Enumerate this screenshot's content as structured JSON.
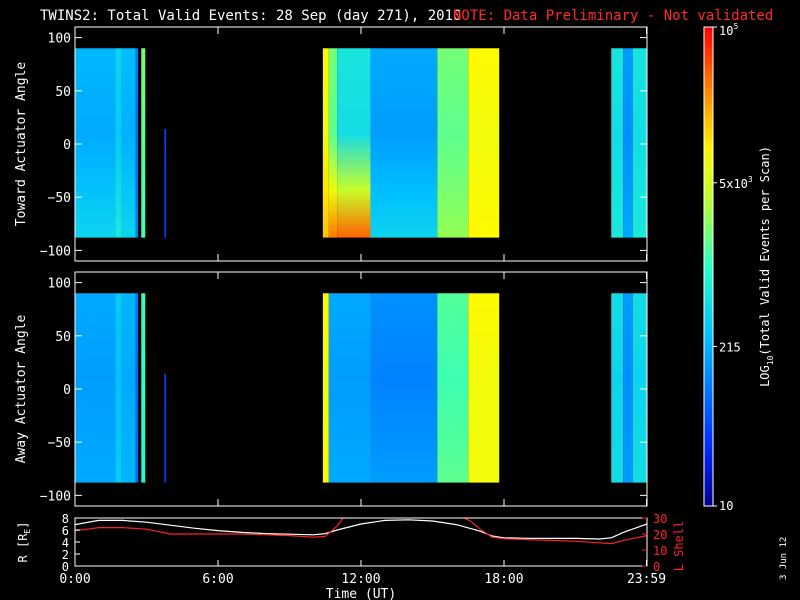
{
  "chart_data": [
    {
      "type": "heatmap",
      "title": "TWINS2: Total Valid Events: 28 Sep (day 271), 2010",
      "note": "NOTE: Data Preliminary - Not validated",
      "panels": [
        {
          "id": "toward",
          "ylabel": "Toward Actuator Angle",
          "ylim": [
            -110,
            110
          ],
          "yticks": [
            -100,
            -50,
            0,
            50,
            100
          ],
          "data_ylim": [
            -88,
            90
          ],
          "blocks": [
            {
              "t0": 0.0,
              "t1": 1.7,
              "c_mid": 0.32,
              "c_low": 0.4
            },
            {
              "t0": 1.7,
              "t1": 1.95,
              "c_mid": 0.38,
              "c_low": 0.45
            },
            {
              "t0": 1.95,
              "t1": 2.55,
              "c_mid": 0.33,
              "c_low": 0.4
            },
            {
              "t0": 2.55,
              "t1": 2.65,
              "c_mid": 0.22,
              "c_low": 0.25
            },
            {
              "t0": 2.78,
              "t1": 2.95,
              "c_mid": 0.55,
              "c_low": 0.52
            },
            {
              "t0": 3.75,
              "t1": 3.82,
              "c_mid": 0.15,
              "c_low": 0.15,
              "y0": -88,
              "y1": 14
            },
            {
              "t0": 10.4,
              "t1": 10.65,
              "c_mid": 0.72,
              "c_low": 0.8
            },
            {
              "t0": 10.65,
              "t1": 11.0,
              "c_mid": 0.55,
              "c_low": 0.88
            },
            {
              "t0": 11.0,
              "t1": 12.4,
              "c_mid": 0.42,
              "c_low": 0.9
            },
            {
              "t0": 12.4,
              "t1": 15.2,
              "c_mid": 0.3,
              "c_low": 0.4
            },
            {
              "t0": 15.2,
              "t1": 16.5,
              "c_mid": 0.55,
              "c_low": 0.6
            },
            {
              "t0": 16.5,
              "t1": 17.8,
              "c_mid": 0.72,
              "c_low": 0.74
            },
            {
              "t0": 22.5,
              "t1": 23.0,
              "c_mid": 0.42,
              "c_low": 0.45
            },
            {
              "t0": 23.0,
              "t1": 23.4,
              "c_mid": 0.28,
              "c_low": 0.32
            },
            {
              "t0": 23.4,
              "t1": 23.98,
              "c_mid": 0.42,
              "c_low": 0.45
            }
          ]
        },
        {
          "id": "away",
          "ylabel": "Away Actuator Angle",
          "ylim": [
            -110,
            110
          ],
          "yticks": [
            -100,
            -50,
            0,
            50,
            100
          ],
          "data_ylim": [
            -88,
            90
          ],
          "blocks": [
            {
              "t0": 0.0,
              "t1": 1.7,
              "c_mid": 0.3,
              "c_low": 0.32
            },
            {
              "t0": 1.7,
              "t1": 1.95,
              "c_mid": 0.36,
              "c_low": 0.38
            },
            {
              "t0": 1.95,
              "t1": 2.55,
              "c_mid": 0.32,
              "c_low": 0.34
            },
            {
              "t0": 2.55,
              "t1": 2.65,
              "c_mid": 0.22,
              "c_low": 0.22
            },
            {
              "t0": 2.78,
              "t1": 2.95,
              "c_mid": 0.5,
              "c_low": 0.48
            },
            {
              "t0": 3.75,
              "t1": 3.82,
              "c_mid": 0.15,
              "c_low": 0.15,
              "y0": -88,
              "y1": 14
            },
            {
              "t0": 10.4,
              "t1": 10.65,
              "c_mid": 0.72,
              "c_low": 0.74
            },
            {
              "t0": 10.65,
              "t1": 12.4,
              "c_mid": 0.3,
              "c_low": 0.32
            },
            {
              "t0": 12.4,
              "t1": 15.2,
              "c_mid": 0.26,
              "c_low": 0.3
            },
            {
              "t0": 15.2,
              "t1": 16.5,
              "c_mid": 0.52,
              "c_low": 0.55
            },
            {
              "t0": 16.5,
              "t1": 17.8,
              "c_mid": 0.72,
              "c_low": 0.72
            },
            {
              "t0": 22.5,
              "t1": 23.0,
              "c_mid": 0.4,
              "c_low": 0.42
            },
            {
              "t0": 23.0,
              "t1": 23.4,
              "c_mid": 0.28,
              "c_low": 0.3
            },
            {
              "t0": 23.4,
              "t1": 23.98,
              "c_mid": 0.4,
              "c_low": 0.42
            }
          ]
        }
      ],
      "colorbar": {
        "label": "LOG10(Total Valid Events per Scan)",
        "label_parts": {
          "pre": "LOG",
          "sub": "10",
          "post": "(Total Valid Events per Scan)"
        },
        "scale": "log",
        "range": [
          10,
          100000
        ],
        "ticks": [
          {
            "value": 10,
            "text": "10"
          },
          {
            "value": 215,
            "text": "215"
          },
          {
            "value": 5000,
            "text": "5x10",
            "sup": "3"
          },
          {
            "value": 100000,
            "text": "10",
            "sup": "5"
          }
        ]
      }
    },
    {
      "type": "line",
      "ylabel_left": "R [RE]",
      "ylabel_left_parts": {
        "pre": "R [R",
        "sub": "E",
        "post": "]"
      },
      "ylabel_right": "L Shell",
      "ylim_left": [
        0,
        8
      ],
      "yticks_left": [
        0,
        2,
        4,
        6,
        8
      ],
      "ylim_right": [
        0,
        30
      ],
      "yticks_right": [
        0,
        10,
        20,
        30
      ],
      "xlabel": "Time (UT)",
      "xlim": [
        0,
        24
      ],
      "xticks": [
        {
          "value": 0,
          "text": "0:00"
        },
        {
          "value": 6,
          "text": "6:00"
        },
        {
          "value": 12,
          "text": "12:00"
        },
        {
          "value": 18,
          "text": "18:00"
        },
        {
          "value": 23.98,
          "text": "23:59"
        }
      ],
      "series": [
        {
          "name": "R [RE]",
          "color": "#ffffff",
          "axis": "left",
          "x": [
            0,
            1,
            2,
            3,
            4,
            5,
            6,
            7,
            8,
            9,
            10,
            10.5,
            11,
            12,
            13,
            14,
            15,
            16,
            17,
            17.5,
            18,
            19,
            20,
            21,
            22,
            22.5,
            23,
            24
          ],
          "y": [
            6.9,
            7.6,
            7.6,
            7.3,
            6.8,
            6.3,
            5.9,
            5.6,
            5.4,
            5.3,
            5.2,
            5.4,
            6.0,
            7.0,
            7.6,
            7.7,
            7.5,
            6.9,
            5.8,
            5.0,
            4.7,
            4.6,
            4.6,
            4.6,
            4.5,
            4.7,
            5.6,
            7.0
          ]
        },
        {
          "name": "L Shell",
          "color": "#ff2020",
          "axis": "right",
          "x": [
            0,
            1,
            2,
            3,
            4,
            5,
            6,
            7,
            8,
            9,
            10,
            10.5,
            11,
            11.3,
            16.2,
            16.6,
            17,
            17.5,
            18,
            19,
            20,
            21,
            22,
            22.5,
            23,
            24
          ],
          "y": [
            22,
            24,
            24,
            23,
            20,
            20,
            20,
            20,
            19.5,
            19,
            18,
            18.5,
            25,
            31,
            31,
            28,
            23,
            18,
            17,
            16.5,
            16,
            15.5,
            14.5,
            14,
            16,
            19
          ]
        }
      ]
    }
  ],
  "footer": {
    "date_stamp": "3 Jun 12"
  }
}
